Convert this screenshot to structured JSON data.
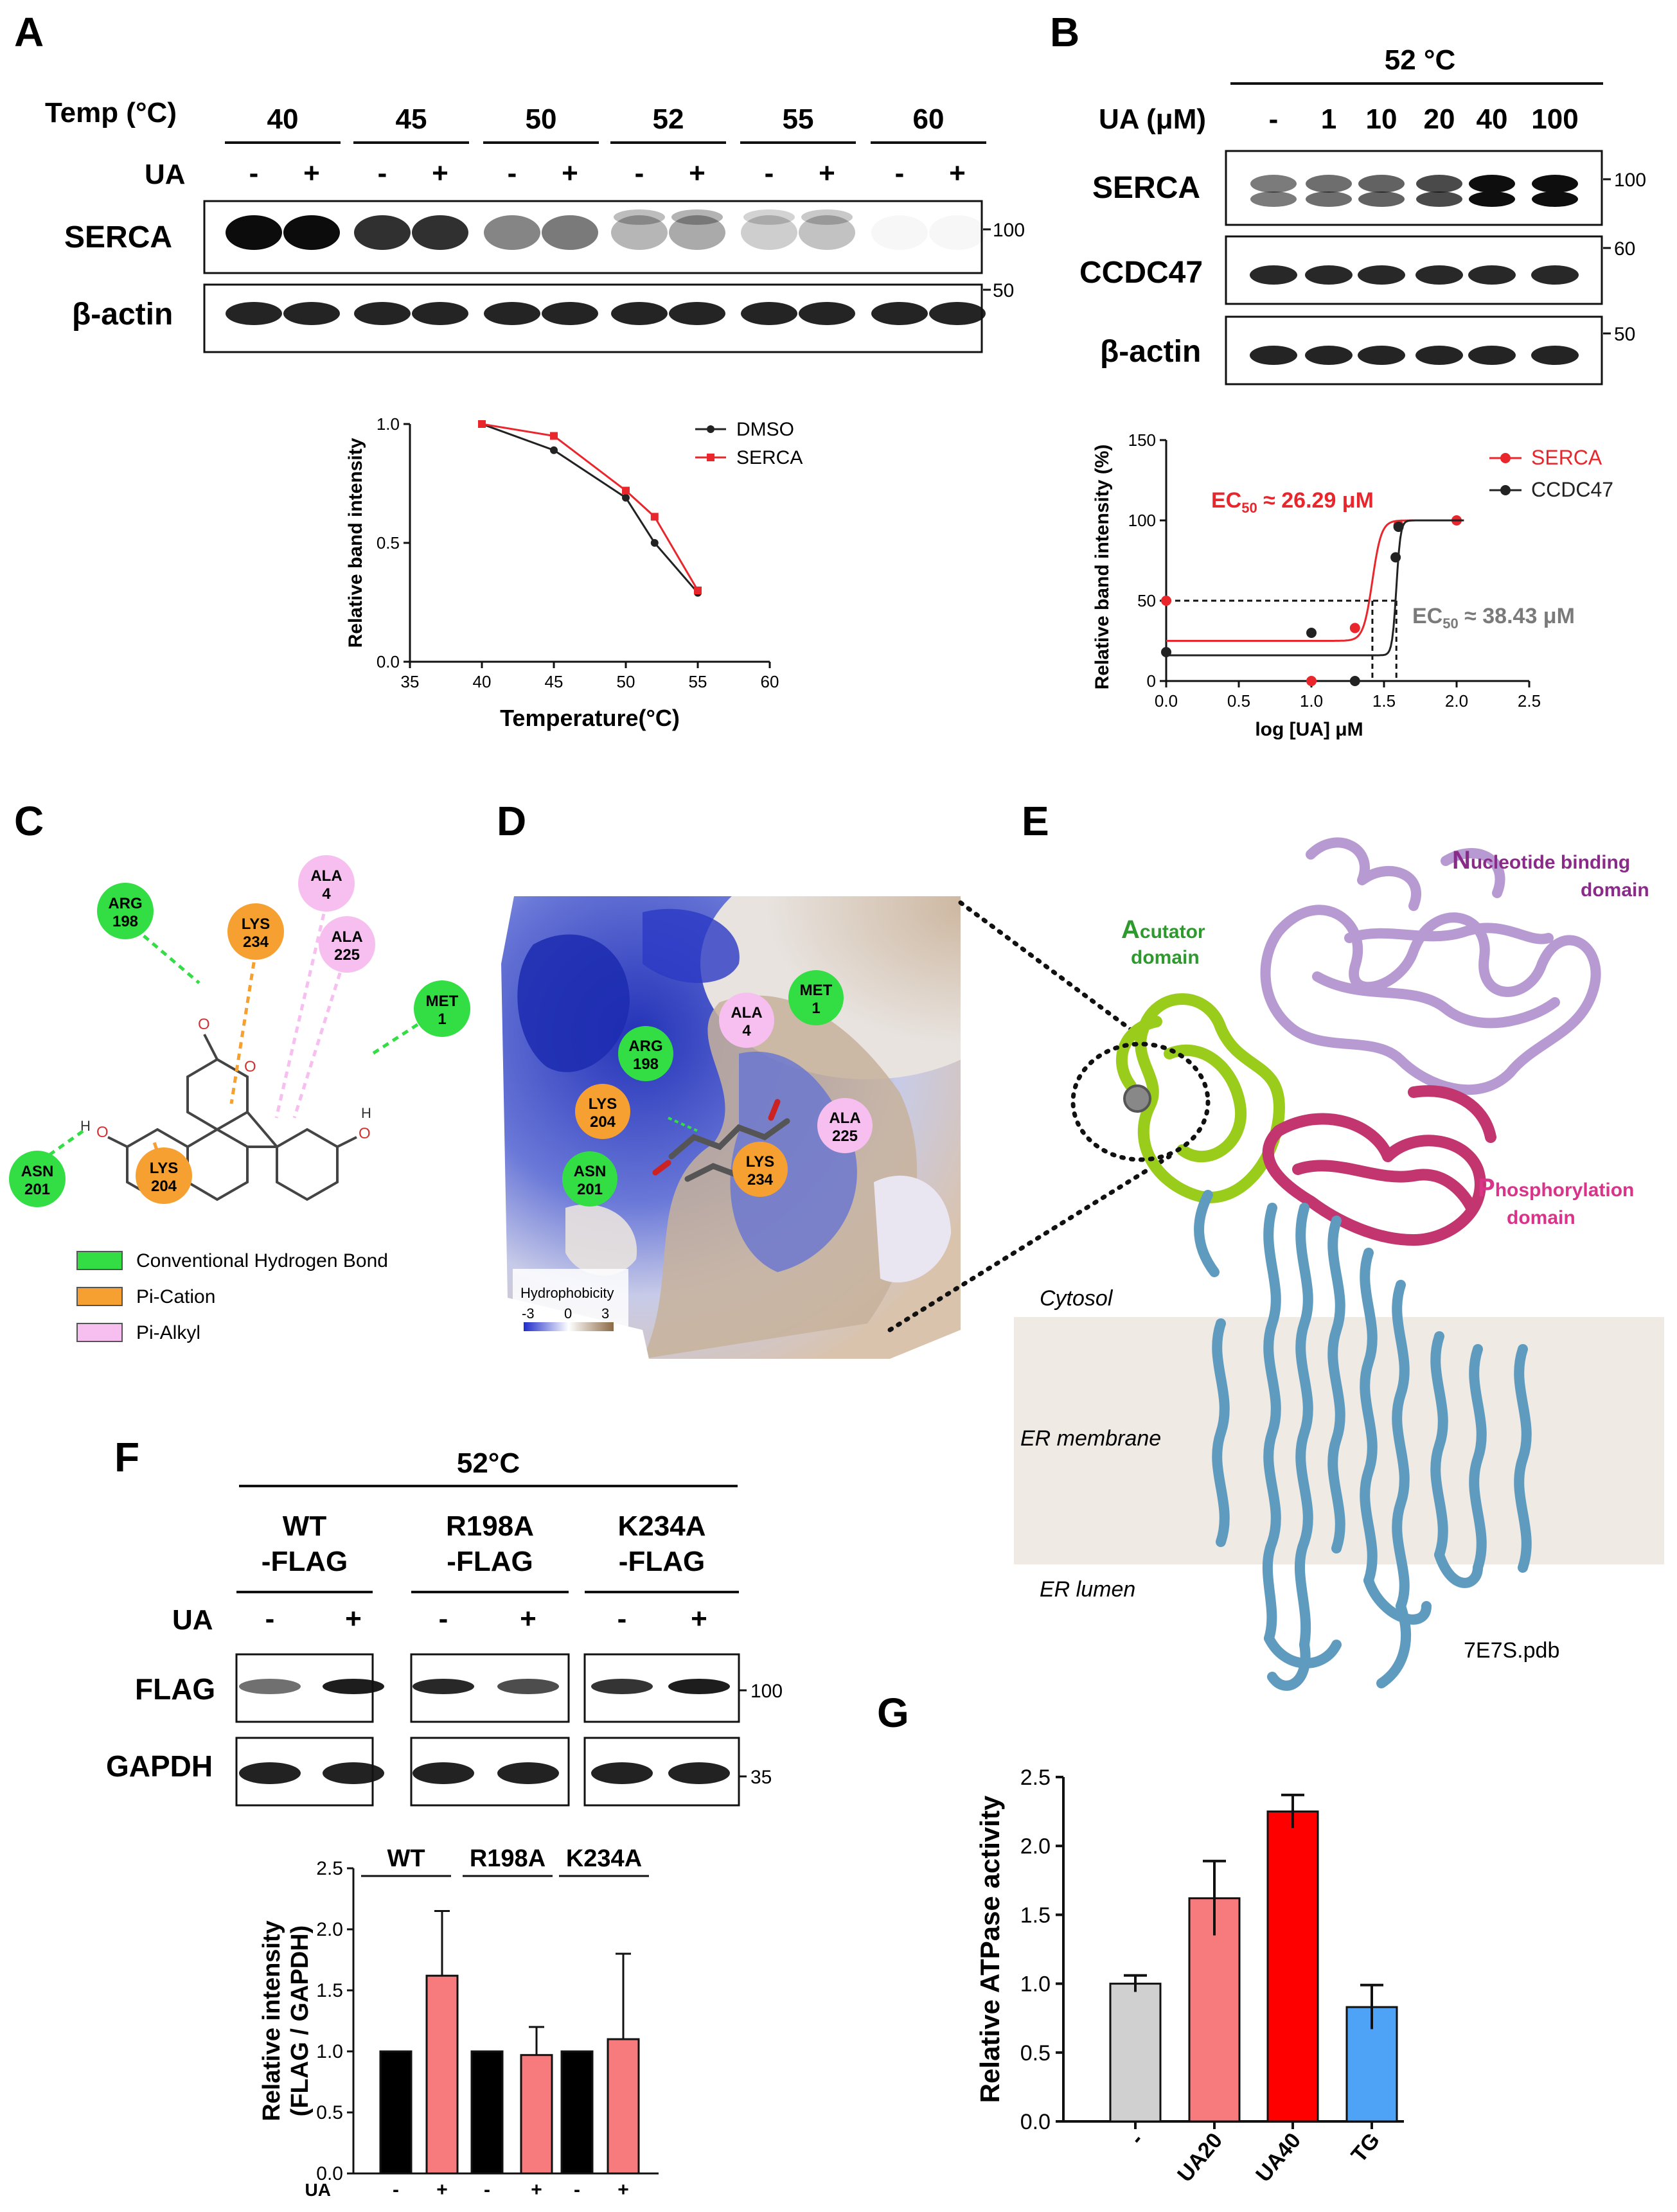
{
  "panel_labels": [
    "A",
    "B",
    "C",
    "D",
    "E",
    "F",
    "G"
  ],
  "A": {
    "temp_label": "Temp (°C)",
    "temps": [
      "40",
      "45",
      "50",
      "52",
      "55",
      "60"
    ],
    "ua_label": "UA",
    "signs": [
      "-",
      "+",
      "-",
      "+",
      "-",
      "+",
      "-",
      "+",
      "-",
      "+",
      "-",
      "+"
    ],
    "rows": [
      "SERCA",
      "β-actin"
    ],
    "mw": [
      "100",
      "50"
    ]
  },
  "B": {
    "condition": "52 °C",
    "ua_label": "UA (μM)",
    "doses": [
      "-",
      "1",
      "10",
      "20",
      "40",
      "100"
    ],
    "rows": [
      "SERCA",
      "CCDC47",
      "β-actin"
    ],
    "mw": [
      "100",
      "60",
      "50"
    ]
  },
  "C": {
    "residues": [
      {
        "name": "ARG",
        "num": "198",
        "type": "hbond"
      },
      {
        "name": "LYS",
        "num": "234",
        "type": "cation"
      },
      {
        "name": "ALA",
        "num": "4",
        "type": "alkyl"
      },
      {
        "name": "ALA",
        "num": "225",
        "type": "alkyl"
      },
      {
        "name": "MET",
        "num": "1",
        "type": "hbond"
      },
      {
        "name": "ASN",
        "num": "201",
        "type": "hbond"
      },
      {
        "name": "LYS",
        "num": "204",
        "type": "cation"
      }
    ],
    "atoms": {
      "o": "O",
      "h": "H"
    },
    "legend": [
      {
        "label": "Conventional Hydrogen Bond",
        "color": "#33dd44"
      },
      {
        "label": "Pi-Cation",
        "color": "#f5a030"
      },
      {
        "label": "Pi-Alkyl",
        "color": "#f7bff0"
      }
    ]
  },
  "D": {
    "residues": [
      {
        "name": "ALA",
        "num": "4",
        "type": "alkyl"
      },
      {
        "name": "MET",
        "num": "1",
        "type": "hbond"
      },
      {
        "name": "ARG",
        "num": "198",
        "type": "hbond"
      },
      {
        "name": "LYS",
        "num": "204",
        "type": "cation"
      },
      {
        "name": "ALA",
        "num": "225",
        "type": "alkyl"
      },
      {
        "name": "LYS",
        "num": "234",
        "type": "cation"
      },
      {
        "name": "ASN",
        "num": "201",
        "type": "hbond"
      }
    ],
    "scale_title": "Hydrophobicity",
    "scale_ticks": [
      "-3",
      "0",
      "3"
    ]
  },
  "E": {
    "actuator": {
      "initial": "A",
      "rest": "cutator",
      "line2": "domain",
      "color": "#2e9a2e"
    },
    "nucleotide": {
      "initial": "N",
      "rest": "ucleotide binding",
      "line2": "domain",
      "color": "#8a2b8a"
    },
    "phospho": {
      "initial": "P",
      "rest": "hosphorylation",
      "line2": "domain",
      "color": "#d9338a"
    },
    "compartments": [
      "Cytosol",
      "ER membrane",
      "ER lumen"
    ],
    "pdb": "7E7S.pdb"
  },
  "F": {
    "condition": "52°C",
    "groups": [
      [
        "WT",
        "-FLAG"
      ],
      [
        "R198A",
        "-FLAG"
      ],
      [
        "K234A",
        "-FLAG"
      ]
    ],
    "ua_label": "UA",
    "signs": [
      "-",
      "+",
      "-",
      "+",
      "-",
      "+"
    ],
    "rows": [
      "FLAG",
      "GAPDH"
    ],
    "mw": [
      "100",
      "35"
    ]
  },
  "chart_data": [
    {
      "id": "A-line",
      "type": "line",
      "xlabel": "Temperature(°C)",
      "ylabel": "Relative band intensity",
      "xlim": [
        35,
        60
      ],
      "ylim": [
        0,
        1.0
      ],
      "xticks": [
        "35",
        "40",
        "45",
        "50",
        "55",
        "60"
      ],
      "yticks": [
        "0.0",
        "0.5",
        "1.0"
      ],
      "series": [
        {
          "name": "DMSO",
          "color": "#222222",
          "x": [
            40,
            45,
            50,
            52,
            55
          ],
          "y": [
            1.0,
            0.89,
            0.69,
            0.5,
            0.29
          ]
        },
        {
          "name": "SERCA",
          "color": "#e8262b",
          "x": [
            40,
            45,
            50,
            52,
            55
          ],
          "y": [
            1.0,
            0.95,
            0.72,
            0.61,
            0.3
          ]
        }
      ],
      "legend_position": "top-right",
      "grid": false
    },
    {
      "id": "B-dose",
      "type": "scatter",
      "xlabel": "log [UA] μM",
      "ylabel": "Relative band intensity (%)",
      "xlim": [
        0,
        2.5
      ],
      "ylim": [
        0,
        150
      ],
      "xticks": [
        "0.0",
        "0.5",
        "1.0",
        "1.5",
        "2.0",
        "2.5"
      ],
      "yticks": [
        "0",
        "50",
        "100",
        "150"
      ],
      "series": [
        {
          "name": "SERCA",
          "color": "#e8262b",
          "x": [
            0,
            1.0,
            1.3,
            1.6,
            2.0
          ],
          "y": [
            50,
            0,
            33,
            97,
            100
          ],
          "fit": {
            "bottom": 25,
            "top": 100,
            "logec50": 1.42,
            "hill": 14
          }
        },
        {
          "name": "CCDC47",
          "color": "#222222",
          "x": [
            0,
            1.0,
            1.3,
            1.58,
            1.6
          ],
          "y": [
            18,
            30,
            0,
            77,
            96
          ],
          "fit": {
            "bottom": 16,
            "top": 100,
            "logec50": 1.585,
            "hill": 30
          }
        }
      ],
      "annotations": [
        {
          "text": "EC",
          "sub": "50",
          "rest": " ≈ 26.29 μM",
          "color": "#e8262b"
        },
        {
          "text": "EC",
          "sub": "50",
          "rest": " ≈ 38.43 μM",
          "color": "#7a7a7a"
        }
      ],
      "guides": {
        "y": 50,
        "x": [
          1.42,
          1.585
        ]
      },
      "legend_position": "top-right",
      "grid": false
    },
    {
      "id": "F-bar",
      "type": "bar",
      "ylabel": "Relative intensity (FLAG / GAPDH)",
      "ylim": [
        0,
        2.5
      ],
      "yticks": [
        "0.0",
        "0.5",
        "1.0",
        "1.5",
        "2.0",
        "2.5"
      ],
      "group_labels": [
        "WT",
        "R198A",
        "K234A"
      ],
      "xlabel_row": "UA",
      "categories": [
        "-",
        "+",
        "-",
        "+",
        "-",
        "+"
      ],
      "values": [
        1.0,
        1.62,
        1.0,
        0.97,
        1.0,
        1.1
      ],
      "errors": [
        0,
        0.53,
        0,
        0.23,
        0,
        0.7
      ],
      "colors": [
        "#000000",
        "#f77b7d",
        "#000000",
        "#f77b7d",
        "#000000",
        "#f77b7d"
      ]
    },
    {
      "id": "G-bar",
      "type": "bar",
      "ylabel": "Relative ATPase activity",
      "ylim": [
        0,
        2.5
      ],
      "yticks": [
        "0.0",
        "0.5",
        "1.0",
        "1.5",
        "2.0",
        "2.5"
      ],
      "categories": [
        "-",
        "UA20",
        "UA40",
        "TG"
      ],
      "values": [
        1.0,
        1.62,
        2.25,
        0.83
      ],
      "errors": [
        0.06,
        0.27,
        0.12,
        0.16
      ],
      "colors": [
        "#d0d0d0",
        "#f77b7d",
        "#ff0000",
        "#4fa3f7"
      ]
    }
  ]
}
